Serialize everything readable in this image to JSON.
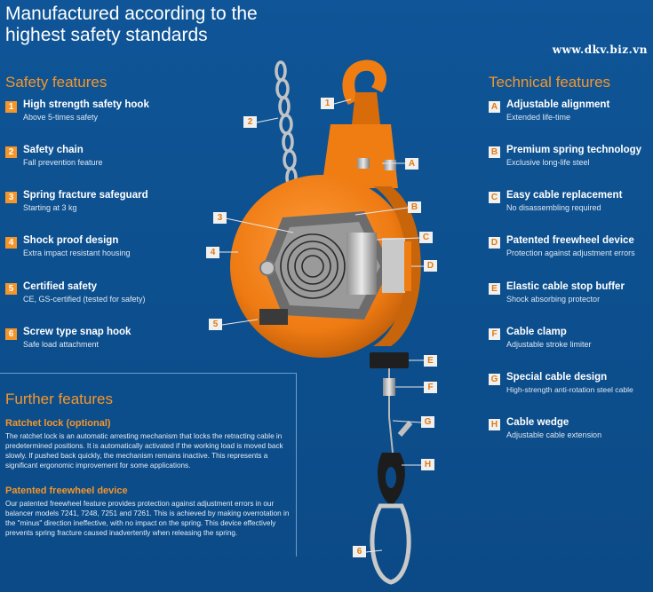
{
  "title": {
    "line1": "Manufactured according to the",
    "line2": "highest safety standards"
  },
  "watermark": "www.dkv.biz.vn",
  "safety": {
    "heading": "Safety features",
    "items": [
      {
        "num": "1",
        "title": "High strength safety hook",
        "desc": "Above 5-times safety"
      },
      {
        "num": "2",
        "title": "Safety chain",
        "desc": "Fall prevention feature"
      },
      {
        "num": "3",
        "title": "Spring fracture safeguard",
        "desc": "Starting at 3 kg"
      },
      {
        "num": "4",
        "title": "Shock proof design",
        "desc": "Extra impact resistant housing"
      },
      {
        "num": "5",
        "title": "Certified safety",
        "desc": "CE, GS-certified (tested for safety)"
      },
      {
        "num": "6",
        "title": "Screw type snap hook",
        "desc": "Safe load attachment"
      }
    ]
  },
  "technical": {
    "heading": "Technical features",
    "items": [
      {
        "letter": "A",
        "title": "Adjustable alignment",
        "desc": "Extended life-time"
      },
      {
        "letter": "B",
        "title": "Premium spring technology",
        "desc": "Exclusive long-life steel"
      },
      {
        "letter": "C",
        "title": "Easy cable replacement",
        "desc": "No disassembling required"
      },
      {
        "letter": "D",
        "title": "Patented freewheel device",
        "desc": "Protection against adjustment errors"
      },
      {
        "letter": "E",
        "title": "Elastic cable stop buffer",
        "desc": "Shock absorbing protector"
      },
      {
        "letter": "F",
        "title": "Cable clamp",
        "desc": "Adjustable stroke limiter"
      },
      {
        "letter": "G",
        "title": "Special cable design",
        "desc": "High-strength anti-rotation steel cable"
      },
      {
        "letter": "H",
        "title": "Cable wedge",
        "desc": "Adjustable cable extension"
      }
    ]
  },
  "further": {
    "heading": "Further features",
    "ratchet_title": "Ratchet lock (optional)",
    "ratchet_text": "The ratchet lock is an automatic arresting mechanism that locks the retracting cable in predetermined positions. It is automatically activated if the working load is moved back slowly. If pushed back quickly, the mechanism remains inactive. This represents a significant ergonomic improvement for some applications.",
    "freewheel_title": "Patented freewheel device",
    "freewheel_text": "Our patented freewheel feature provides protection against adjustment errors in our balancer models 7241, 7248, 7251 and 7261. This is achieved by making overrotation in the \"minus\" direction ineffective, with no impact on the spring. This device effectively prevents spring fracture caused inadvertently when releasing the spring."
  },
  "callouts": {
    "c1": "1",
    "c2": "2",
    "c3": "3",
    "c4": "4",
    "c5": "5",
    "c6": "6",
    "cA": "A",
    "cB": "B",
    "cC": "C",
    "cD": "D",
    "cE": "E",
    "cF": "F",
    "cG": "G",
    "cH": "H"
  },
  "colors": {
    "background": "#0e4f8f",
    "accent": "#f5962a",
    "housing": "#f07d12"
  }
}
